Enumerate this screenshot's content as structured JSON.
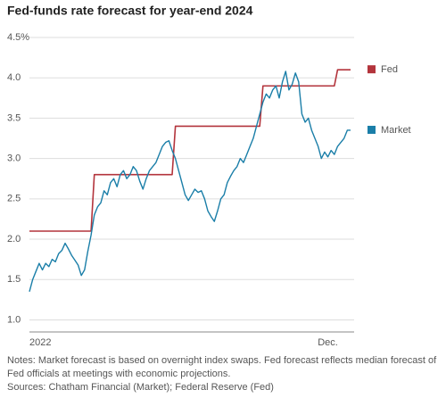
{
  "chart_data": {
    "type": "line",
    "title": "Fed-funds rate forecast for year-end 2024",
    "categories": [
      "2022",
      null,
      null,
      null,
      null,
      null,
      null,
      null,
      null,
      null,
      null,
      null,
      null,
      null,
      null,
      null,
      null,
      null,
      null,
      null,
      null,
      null,
      null,
      null,
      null,
      null,
      null,
      null,
      null,
      null,
      null,
      null,
      null,
      null,
      null,
      null,
      null,
      null,
      null,
      null,
      null,
      null,
      null,
      null,
      null,
      null,
      null,
      null,
      null,
      null,
      null,
      null,
      null,
      null,
      null,
      null,
      null,
      null,
      null,
      null,
      null,
      null,
      null,
      null,
      null,
      null,
      null,
      null,
      null,
      null,
      null,
      null,
      null,
      null,
      null,
      null,
      null,
      null,
      null,
      null,
      null,
      null,
      null,
      null,
      null,
      null,
      null,
      null,
      null,
      null,
      null,
      null,
      "Dec.",
      null,
      null,
      null,
      null,
      null,
      null,
      null
    ],
    "series": [
      {
        "name": "Fed",
        "color": "#b3343c",
        "values": [
          2.1,
          2.1,
          2.1,
          2.1,
          2.1,
          2.1,
          2.1,
          2.1,
          2.1,
          2.1,
          2.1,
          2.1,
          2.1,
          2.1,
          2.1,
          2.1,
          2.1,
          2.1,
          2.1,
          2.1,
          2.8,
          2.8,
          2.8,
          2.8,
          2.8,
          2.8,
          2.8,
          2.8,
          2.8,
          2.8,
          2.8,
          2.8,
          2.8,
          2.8,
          2.8,
          2.8,
          2.8,
          2.8,
          2.8,
          2.8,
          2.8,
          2.8,
          2.8,
          2.8,
          2.8,
          3.4,
          3.4,
          3.4,
          3.4,
          3.4,
          3.4,
          3.4,
          3.4,
          3.4,
          3.4,
          3.4,
          3.4,
          3.4,
          3.4,
          3.4,
          3.4,
          3.4,
          3.4,
          3.4,
          3.4,
          3.4,
          3.4,
          3.4,
          3.4,
          3.4,
          3.4,
          3.4,
          3.9,
          3.9,
          3.9,
          3.9,
          3.9,
          3.9,
          3.9,
          3.9,
          3.9,
          3.9,
          3.9,
          3.9,
          3.9,
          3.9,
          3.9,
          3.9,
          3.9,
          3.9,
          3.9,
          3.9,
          3.9,
          3.9,
          3.9,
          4.1,
          4.1,
          4.1,
          4.1,
          4.1
        ]
      },
      {
        "name": "Market",
        "color": "#1a7ea8",
        "values": [
          1.35,
          1.5,
          1.6,
          1.7,
          1.62,
          1.7,
          1.66,
          1.75,
          1.72,
          1.82,
          1.86,
          1.95,
          1.88,
          1.8,
          1.74,
          1.68,
          1.55,
          1.62,
          1.85,
          2.05,
          2.3,
          2.4,
          2.45,
          2.6,
          2.55,
          2.7,
          2.75,
          2.65,
          2.8,
          2.85,
          2.75,
          2.8,
          2.9,
          2.85,
          2.72,
          2.62,
          2.75,
          2.85,
          2.9,
          2.95,
          3.05,
          3.15,
          3.2,
          3.22,
          3.1,
          3.0,
          2.85,
          2.7,
          2.55,
          2.48,
          2.55,
          2.62,
          2.58,
          2.6,
          2.5,
          2.35,
          2.28,
          2.22,
          2.35,
          2.5,
          2.55,
          2.7,
          2.78,
          2.85,
          2.9,
          3.0,
          2.95,
          3.05,
          3.15,
          3.25,
          3.4,
          3.55,
          3.7,
          3.8,
          3.75,
          3.85,
          3.9,
          3.75,
          3.95,
          4.08,
          3.85,
          3.92,
          4.06,
          3.95,
          3.55,
          3.45,
          3.5,
          3.35,
          3.25,
          3.15,
          3.0,
          3.08,
          3.02,
          3.1,
          3.05,
          3.15,
          3.2,
          3.25,
          3.35,
          3.35
        ]
      }
    ],
    "ylim": [
      0.85,
      4.5
    ],
    "yticks": [
      {
        "value": 4.5,
        "label": "4.5%"
      },
      {
        "value": 4.0,
        "label": "4.0"
      },
      3.5,
      {
        "value": 3.0,
        "label": "3.0"
      },
      2.5,
      {
        "value": 2.0,
        "label": "2.0"
      },
      1.5,
      {
        "value": 1.0,
        "label": "1.0"
      }
    ],
    "grid": true,
    "notes": "Notes: Market forecast is based on overnight index swaps. Fed forecast reflects median forecast of Fed officials at meetings with economic projections.",
    "source": "Sources: Chatham Financial (Market); Federal Reserve (Fed)"
  }
}
